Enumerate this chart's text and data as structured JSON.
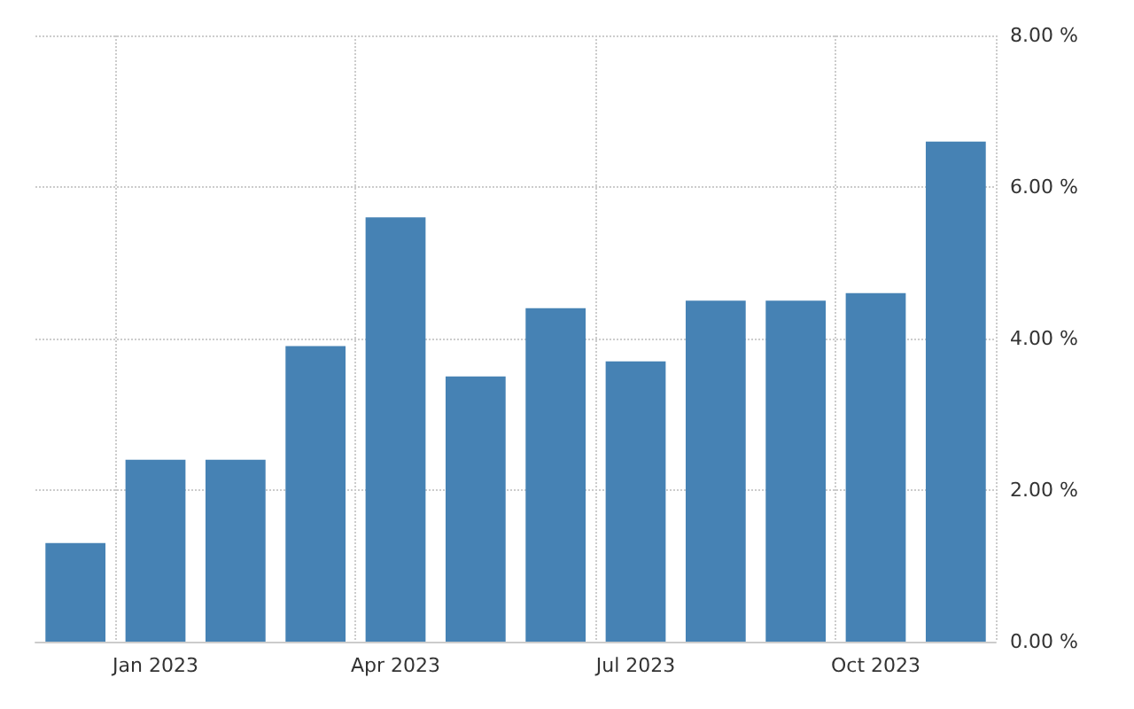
{
  "chart_data": {
    "type": "bar",
    "categories": [
      null,
      "Jan 2023",
      null,
      null,
      "Apr 2023",
      null,
      null,
      "Jul 2023",
      null,
      null,
      "Oct 2023",
      null
    ],
    "values": [
      1.3,
      2.4,
      2.4,
      3.9,
      5.6,
      3.5,
      4.4,
      3.7,
      4.5,
      4.5,
      4.6,
      6.6
    ],
    "color": "#4682b4",
    "ylim": [
      0,
      8
    ],
    "yticks": [
      {
        "value": 0,
        "label": "0.00 %"
      },
      {
        "value": 2,
        "label": "2.00 %"
      },
      {
        "value": 4,
        "label": "4.00 %"
      },
      {
        "value": 6,
        "label": "6.00 %"
      },
      {
        "value": 8,
        "label": "8.00 %"
      }
    ],
    "grid": true
  }
}
